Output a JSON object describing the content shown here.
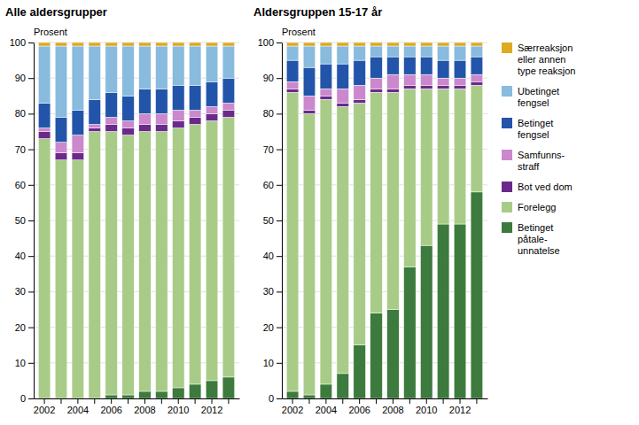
{
  "chart_data": [
    {
      "type": "bar",
      "stacked": true,
      "title": "Alle aldersgrupper",
      "ylabel": "Prosent",
      "categories": [
        2002,
        null,
        2004,
        null,
        2006,
        null,
        2008,
        null,
        2010,
        null,
        2012,
        null
      ],
      "series": [
        {
          "color": "#3d7a3d",
          "values": [
            0,
            0,
            0,
            0,
            1,
            1,
            2,
            2,
            3,
            4,
            5,
            6
          ]
        },
        {
          "color": "#a8cc88",
          "values": [
            73,
            67,
            67,
            75,
            74,
            73,
            73,
            73,
            73,
            73,
            73,
            73
          ]
        },
        {
          "color": "#6a2a8a",
          "values": [
            2,
            2,
            2,
            1,
            2,
            2,
            2,
            2,
            2,
            2,
            2,
            2
          ]
        },
        {
          "color": "#cc88cc",
          "values": [
            1,
            3,
            5,
            1,
            2,
            2,
            3,
            3,
            3,
            2,
            2,
            2
          ]
        },
        {
          "color": "#2255aa",
          "values": [
            7,
            7,
            7,
            7,
            7,
            7,
            7,
            7,
            7,
            7,
            7,
            7
          ]
        },
        {
          "color": "#88bbdd",
          "values": [
            16,
            20,
            18,
            15,
            13,
            14,
            12,
            12,
            11,
            11,
            10,
            9
          ]
        },
        {
          "color": "#ddaa22",
          "values": [
            1,
            1,
            1,
            1,
            1,
            1,
            1,
            1,
            1,
            1,
            1,
            1
          ]
        }
      ],
      "ylim": [
        0,
        100
      ],
      "yticks": [
        0,
        10,
        20,
        30,
        40,
        50,
        60,
        70,
        80,
        90,
        100
      ],
      "grid": true
    },
    {
      "type": "bar",
      "stacked": true,
      "title": "Aldersgruppen 15-17 år",
      "ylabel": "Prosent",
      "categories": [
        2002,
        null,
        2004,
        null,
        2006,
        null,
        2008,
        null,
        2010,
        null,
        2012,
        null
      ],
      "series": [
        {
          "name": "Betinget\npåtale-\nunnatelse",
          "color": "#3d7a3d",
          "values": [
            2,
            1,
            4,
            7,
            15,
            24,
            25,
            37,
            43,
            49,
            49,
            58
          ]
        },
        {
          "name": "Forelegg",
          "color": "#a8cc88",
          "values": [
            84,
            79,
            80,
            75,
            68,
            62,
            61,
            50,
            44,
            38,
            38,
            30
          ]
        },
        {
          "name": "Bot ved dom",
          "color": "#6a2a8a",
          "values": [
            1,
            1,
            1,
            1,
            1,
            1,
            1,
            1,
            1,
            1,
            1,
            1
          ]
        },
        {
          "name": "Samfunns-\nstraff",
          "color": "#cc88cc",
          "values": [
            2,
            4,
            2,
            4,
            4,
            3,
            4,
            3,
            3,
            2,
            2,
            2
          ]
        },
        {
          "name": "Betinget\nfengsel",
          "color": "#2255aa",
          "values": [
            6,
            8,
            7,
            7,
            7,
            6,
            5,
            5,
            5,
            5,
            5,
            5
          ]
        },
        {
          "name": "Ubetinget\nfengsel",
          "color": "#88bbdd",
          "values": [
            4,
            6,
            5,
            5,
            4,
            3,
            3,
            3,
            3,
            4,
            4,
            3
          ]
        },
        {
          "name": "Særreaksjon\neller annen\ntype reaksjon",
          "color": "#ddaa22",
          "values": [
            1,
            1,
            1,
            1,
            1,
            1,
            1,
            1,
            1,
            1,
            1,
            1
          ]
        }
      ],
      "ylim": [
        0,
        100
      ],
      "yticks": [
        0,
        10,
        20,
        30,
        40,
        50,
        60,
        70,
        80,
        90,
        100
      ],
      "grid": true,
      "legend": "right"
    }
  ]
}
